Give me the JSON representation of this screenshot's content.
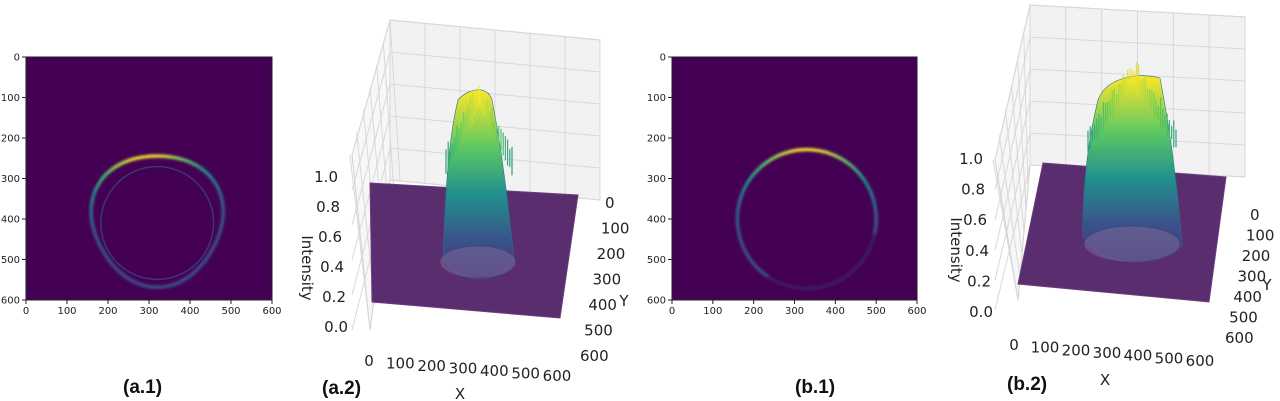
{
  "chart_data": [
    {
      "id": "a1",
      "type": "heatmap",
      "panel_label": "(a.1)",
      "xlim": [
        0,
        600
      ],
      "ylim": [
        0,
        600
      ],
      "x_ticks": [
        "0",
        "100",
        "200",
        "300",
        "400",
        "500",
        "600"
      ],
      "y_ticks": [
        "0",
        "100",
        "200",
        "300",
        "400",
        "500",
        "600"
      ],
      "colormap": "viridis",
      "ring": {
        "center_x": 320,
        "center_y": 400,
        "radius": 160,
        "peak_angle_deg": -100
      }
    },
    {
      "id": "a2",
      "type": "surface3d",
      "panel_label": "(a.2)",
      "xlabel": "X",
      "ylabel": "Y",
      "zlabel": "Intensity",
      "x_ticks": [
        "0",
        "100",
        "200",
        "300",
        "400",
        "500",
        "600"
      ],
      "y_ticks": [
        "0",
        "100",
        "200",
        "300",
        "400",
        "500",
        "600"
      ],
      "z_ticks": [
        "0.0",
        "0.2",
        "0.4",
        "0.6",
        "0.8",
        "1.0"
      ],
      "zlim": [
        0,
        1.0
      ],
      "peak_z": 1.0
    },
    {
      "id": "b1",
      "type": "heatmap",
      "panel_label": "(b.1)",
      "xlim": [
        0,
        600
      ],
      "ylim": [
        0,
        600
      ],
      "x_ticks": [
        "0",
        "100",
        "200",
        "300",
        "400",
        "500",
        "600"
      ],
      "y_ticks": [
        "0",
        "100",
        "200",
        "300",
        "400",
        "500",
        "600"
      ],
      "colormap": "viridis",
      "ring": {
        "center_x": 330,
        "center_y": 400,
        "radius": 170,
        "peak_angle_deg": -90
      }
    },
    {
      "id": "b2",
      "type": "surface3d",
      "panel_label": "(b.2)",
      "xlabel": "X",
      "ylabel": "Y",
      "zlabel": "Intensity",
      "x_ticks": [
        "0",
        "100",
        "200",
        "300",
        "400",
        "500",
        "600"
      ],
      "y_ticks": [
        "0",
        "100",
        "200",
        "300",
        "400",
        "500",
        "600"
      ],
      "z_ticks": [
        "0.0",
        "0.2",
        "0.4",
        "0.6",
        "0.8",
        "1.0"
      ],
      "zlim": [
        0,
        1.0
      ],
      "peak_z": 1.0
    }
  ]
}
